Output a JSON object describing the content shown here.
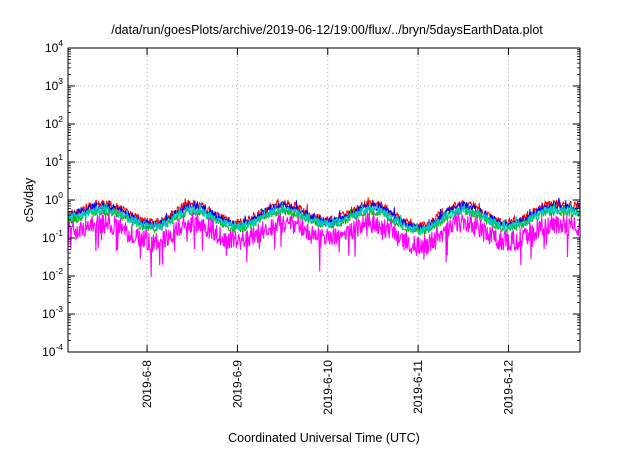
{
  "chart_data": {
    "type": "line",
    "title": "/data/run/goesPlots/archive/2019-06-12/19:00/flux/../bryn/5daysEarthData.plot",
    "xlabel": "Coordinated Universal Time (UTC)",
    "ylabel": "cSv/day",
    "yscale": "log",
    "ylim": [
      0.0001,
      10000
    ],
    "xlim": [
      "2019-06-07T03:00",
      "2019-06-12T19:00"
    ],
    "x_ticks": [
      "2019-6-8",
      "2019-6-9",
      "2019-6-10",
      "2019-6-11",
      "2019-6-12"
    ],
    "y_ticks": [
      {
        "base": "10",
        "exp": "-4"
      },
      {
        "base": "10",
        "exp": "-3"
      },
      {
        "base": "10",
        "exp": "-2"
      },
      {
        "base": "10",
        "exp": "-1"
      },
      {
        "base": "10",
        "exp": "0"
      },
      {
        "base": "10",
        "exp": "1"
      },
      {
        "base": "10",
        "exp": "2"
      },
      {
        "base": "10",
        "exp": "3"
      },
      {
        "base": "10",
        "exp": "4"
      }
    ],
    "grid": true,
    "series": [
      {
        "color": "#ff0000",
        "anchors": [
          [
            "2019-06-07T03:00",
            0.45
          ],
          [
            "2019-06-07T12:00",
            0.8
          ],
          [
            "2019-06-08T02:00",
            0.25
          ],
          [
            "2019-06-08T12:00",
            0.8
          ],
          [
            "2019-06-09T00:00",
            0.25
          ],
          [
            "2019-06-09T12:00",
            0.8
          ],
          [
            "2019-06-10T00:00",
            0.3
          ],
          [
            "2019-06-10T12:00",
            0.8
          ],
          [
            "2019-06-11T00:00",
            0.2
          ],
          [
            "2019-06-11T12:00",
            0.8
          ],
          [
            "2019-06-12T00:00",
            0.25
          ],
          [
            "2019-06-12T12:00",
            0.8
          ],
          [
            "2019-06-12T19:00",
            0.7
          ]
        ]
      },
      {
        "color": "#0000ff",
        "anchors": [
          [
            "2019-06-07T03:00",
            0.4
          ],
          [
            "2019-06-07T12:00",
            0.7
          ],
          [
            "2019-06-08T02:00",
            0.22
          ],
          [
            "2019-06-08T12:00",
            0.7
          ],
          [
            "2019-06-09T00:00",
            0.22
          ],
          [
            "2019-06-09T12:00",
            0.7
          ],
          [
            "2019-06-10T00:00",
            0.27
          ],
          [
            "2019-06-10T12:00",
            0.7
          ],
          [
            "2019-06-11T00:00",
            0.18
          ],
          [
            "2019-06-11T12:00",
            0.7
          ],
          [
            "2019-06-12T00:00",
            0.22
          ],
          [
            "2019-06-12T12:00",
            0.7
          ],
          [
            "2019-06-12T19:00",
            0.6
          ]
        ]
      },
      {
        "color": "#00c000",
        "anchors": [
          [
            "2019-06-07T03:00",
            0.3
          ],
          [
            "2019-06-07T12:00",
            0.5
          ],
          [
            "2019-06-08T02:00",
            0.18
          ],
          [
            "2019-06-08T12:00",
            0.5
          ],
          [
            "2019-06-09T00:00",
            0.18
          ],
          [
            "2019-06-09T12:00",
            0.5
          ],
          [
            "2019-06-10T00:00",
            0.22
          ],
          [
            "2019-06-10T12:00",
            0.5
          ],
          [
            "2019-06-11T00:00",
            0.15
          ],
          [
            "2019-06-11T12:00",
            0.5
          ],
          [
            "2019-06-12T00:00",
            0.18
          ],
          [
            "2019-06-12T12:00",
            0.5
          ],
          [
            "2019-06-12T19:00",
            0.45
          ]
        ]
      },
      {
        "color": "#00c8c8",
        "anchors": [
          [
            "2019-06-07T03:00",
            0.35
          ],
          [
            "2019-06-07T12:00",
            0.55
          ],
          [
            "2019-06-08T02:00",
            0.2
          ],
          [
            "2019-06-08T12:00",
            0.55
          ],
          [
            "2019-06-09T00:00",
            0.2
          ],
          [
            "2019-06-09T12:00",
            0.55
          ],
          [
            "2019-06-10T00:00",
            0.24
          ],
          [
            "2019-06-10T12:00",
            0.55
          ],
          [
            "2019-06-11T00:00",
            0.16
          ],
          [
            "2019-06-11T12:00",
            0.55
          ],
          [
            "2019-06-12T00:00",
            0.2
          ],
          [
            "2019-06-12T12:00",
            0.55
          ],
          [
            "2019-06-12T19:00",
            0.5
          ]
        ]
      },
      {
        "color": "#ff00ff",
        "anchors": [
          [
            "2019-06-07T03:00",
            0.15
          ],
          [
            "2019-06-07T12:00",
            0.25
          ],
          [
            "2019-06-08T02:00",
            0.08
          ],
          [
            "2019-06-08T12:00",
            0.25
          ],
          [
            "2019-06-09T00:00",
            0.08
          ],
          [
            "2019-06-09T12:00",
            0.25
          ],
          [
            "2019-06-10T00:00",
            0.1
          ],
          [
            "2019-06-10T12:00",
            0.25
          ],
          [
            "2019-06-11T00:00",
            0.06
          ],
          [
            "2019-06-11T12:00",
            0.25
          ],
          [
            "2019-06-12T00:00",
            0.08
          ],
          [
            "2019-06-12T12:00",
            0.25
          ],
          [
            "2019-06-12T19:00",
            0.2
          ]
        ]
      }
    ]
  }
}
